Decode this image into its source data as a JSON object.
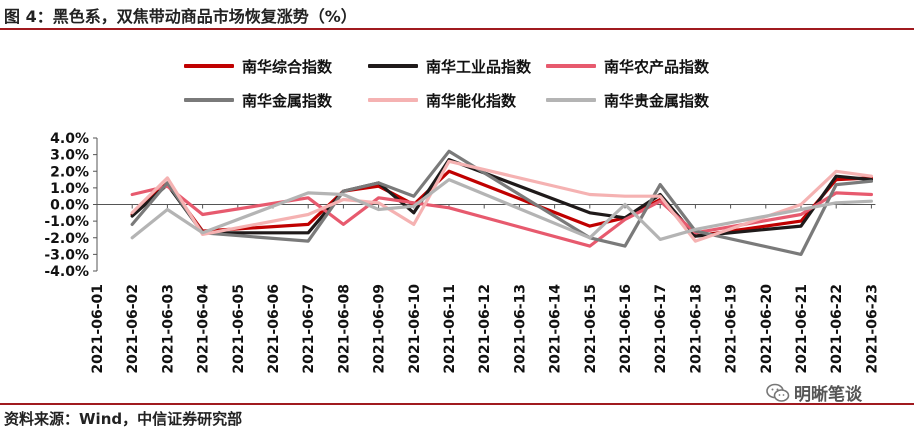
{
  "title": "图 4：黑色系，双焦带动商品市场恢复涨势（%）",
  "source": "资料来源：Wind，中信证券研究部",
  "watermark": "明晰笔谈",
  "chart_data": {
    "type": "line",
    "title": "图 4：黑色系，双焦带动商品市场恢复涨势（%）",
    "xlabel": "",
    "ylabel": "%",
    "ylim": [
      -4.0,
      4.0
    ],
    "yticks": [
      "4.0%",
      "3.0%",
      "2.0%",
      "1.0%",
      "0.0%",
      "-1.0%",
      "-2.0%",
      "-3.0%",
      "-4.0%"
    ],
    "categories": [
      "2021-06-01",
      "2021-06-02",
      "2021-06-03",
      "2021-06-04",
      "2021-06-05",
      "2021-06-06",
      "2021-06-07",
      "2021-06-08",
      "2021-06-09",
      "2021-06-10",
      "2021-06-11",
      "2021-06-12",
      "2021-06-13",
      "2021-06-14",
      "2021-06-15",
      "2021-06-16",
      "2021-06-17",
      "2021-06-18",
      "2021-06-19",
      "2021-06-20",
      "2021-06-21",
      "2021-06-22",
      "2021-06-23"
    ],
    "series": [
      {
        "name": "南华综合指数",
        "color": "#c00000",
        "points": [
          [
            1,
            -0.6
          ],
          [
            2,
            1.3
          ],
          [
            3,
            -1.6
          ],
          [
            6,
            -1.2
          ],
          [
            7,
            0.8
          ],
          [
            8,
            1.1
          ],
          [
            9,
            0.0
          ],
          [
            10,
            2.0
          ],
          [
            14,
            -1.3
          ],
          [
            15,
            -0.8
          ],
          [
            16,
            0.3
          ],
          [
            17,
            -1.9
          ],
          [
            20,
            -1.0
          ],
          [
            21,
            1.5
          ],
          [
            22,
            1.6
          ]
        ]
      },
      {
        "name": "南华工业品指数",
        "color": "#1f1a1a",
        "points": [
          [
            1,
            -0.7
          ],
          [
            2,
            1.2
          ],
          [
            3,
            -1.7
          ],
          [
            6,
            -1.7
          ],
          [
            7,
            0.8
          ],
          [
            8,
            1.3
          ],
          [
            9,
            -0.5
          ],
          [
            10,
            2.7
          ],
          [
            14,
            -0.5
          ],
          [
            15,
            -0.8
          ],
          [
            16,
            0.6
          ],
          [
            17,
            -1.9
          ],
          [
            20,
            -1.3
          ],
          [
            21,
            1.7
          ],
          [
            22,
            1.5
          ]
        ]
      },
      {
        "name": "南华农产品指数",
        "color": "#e75a6e",
        "points": [
          [
            1,
            0.6
          ],
          [
            2,
            1.1
          ],
          [
            3,
            -0.6
          ],
          [
            6,
            0.4
          ],
          [
            7,
            -1.2
          ],
          [
            8,
            0.4
          ],
          [
            9,
            0.1
          ],
          [
            10,
            -0.2
          ],
          [
            14,
            -2.5
          ],
          [
            15,
            -0.9
          ],
          [
            16,
            0.2
          ],
          [
            17,
            -1.7
          ],
          [
            20,
            -0.6
          ],
          [
            21,
            0.7
          ],
          [
            22,
            0.6
          ]
        ]
      },
      {
        "name": "南华金属指数",
        "color": "#7a7a7a",
        "points": [
          [
            1,
            -1.2
          ],
          [
            2,
            1.3
          ],
          [
            3,
            -1.7
          ],
          [
            6,
            -2.2
          ],
          [
            7,
            0.8
          ],
          [
            8,
            1.3
          ],
          [
            9,
            0.5
          ],
          [
            10,
            3.2
          ],
          [
            14,
            -2.0
          ],
          [
            15,
            -2.5
          ],
          [
            16,
            1.2
          ],
          [
            17,
            -1.6
          ],
          [
            20,
            -3.0
          ],
          [
            21,
            1.2
          ],
          [
            22,
            1.4
          ]
        ]
      },
      {
        "name": "南华能化指数",
        "color": "#f5b2b2",
        "points": [
          [
            1,
            -0.5
          ],
          [
            2,
            1.6
          ],
          [
            3,
            -1.8
          ],
          [
            6,
            -0.6
          ],
          [
            7,
            0.3
          ],
          [
            8,
            0.1
          ],
          [
            9,
            -1.2
          ],
          [
            10,
            2.6
          ],
          [
            14,
            0.6
          ],
          [
            15,
            0.5
          ],
          [
            16,
            0.5
          ],
          [
            17,
            -2.2
          ],
          [
            20,
            0.0
          ],
          [
            21,
            2.0
          ],
          [
            22,
            1.7
          ]
        ]
      },
      {
        "name": "南华贵金属指数",
        "color": "#b4b4b4",
        "points": [
          [
            1,
            -2.0
          ],
          [
            2,
            -0.3
          ],
          [
            3,
            -1.7
          ],
          [
            6,
            0.7
          ],
          [
            7,
            0.6
          ],
          [
            8,
            -0.3
          ],
          [
            9,
            -0.1
          ],
          [
            10,
            1.5
          ],
          [
            14,
            -2.0
          ],
          [
            15,
            0.0
          ],
          [
            16,
            -2.1
          ],
          [
            17,
            -1.5
          ],
          [
            20,
            -0.3
          ],
          [
            21,
            0.1
          ],
          [
            22,
            0.2
          ]
        ]
      }
    ]
  }
}
